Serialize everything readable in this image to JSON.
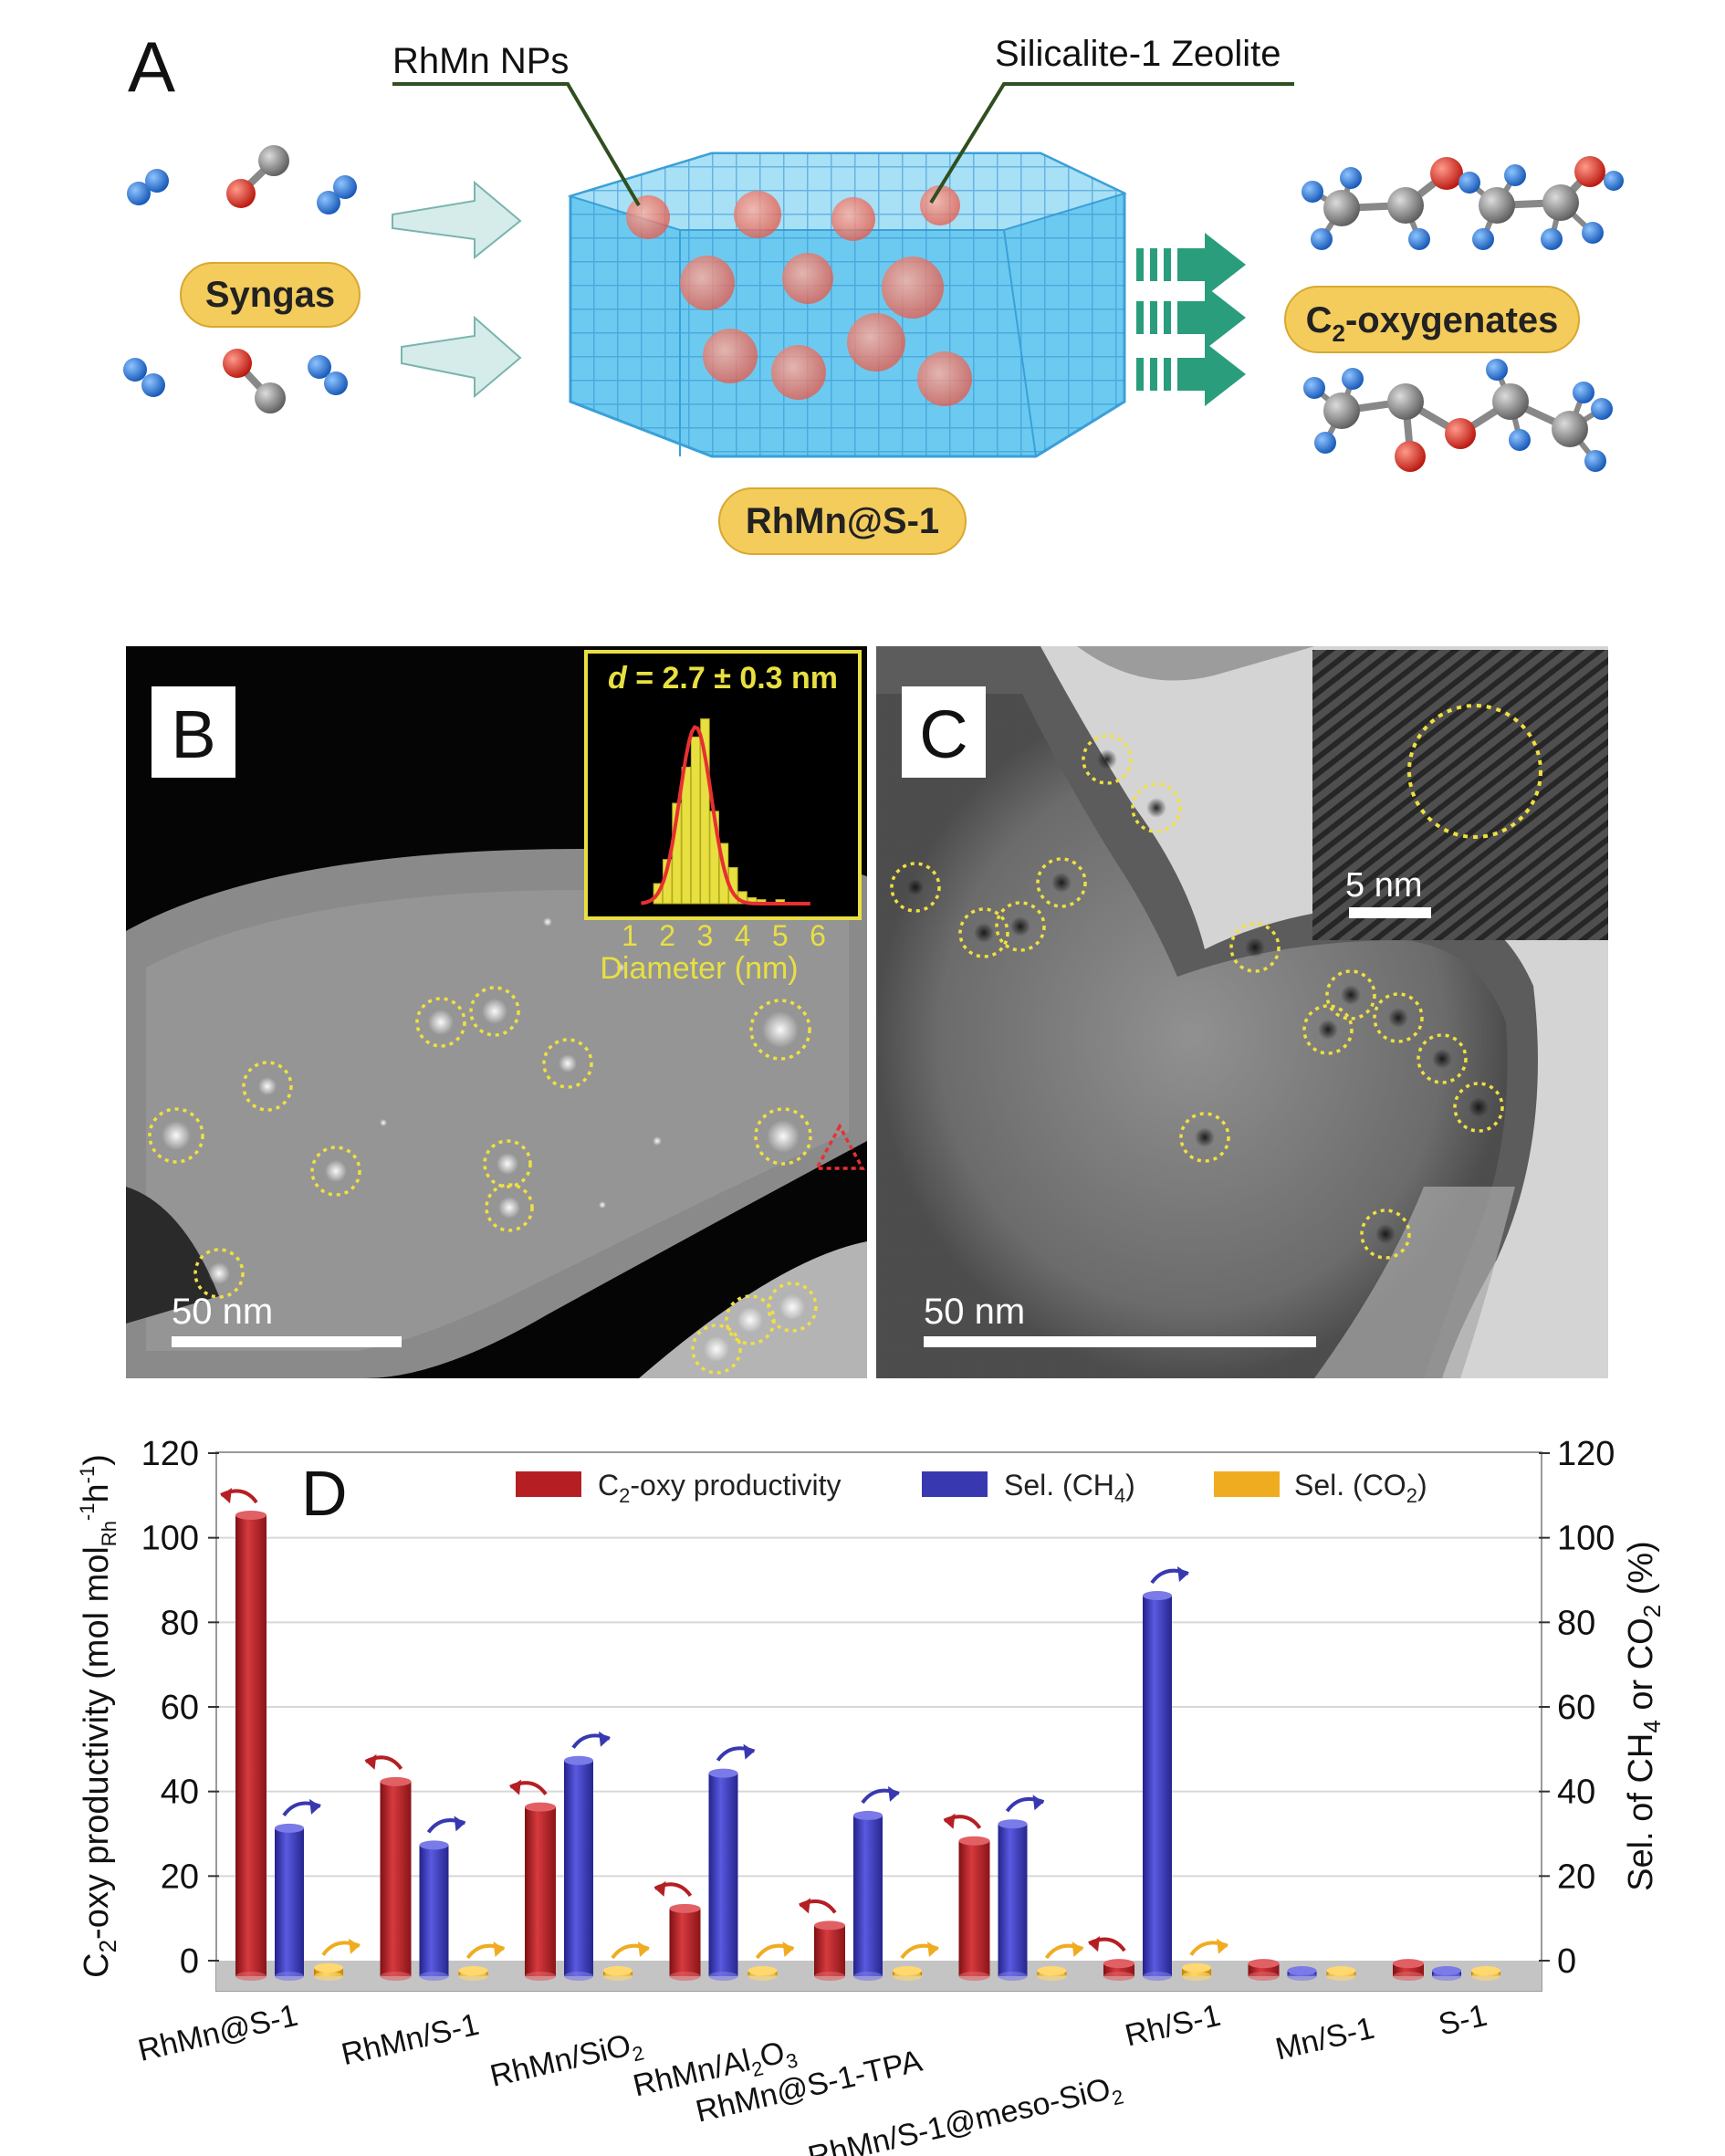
{
  "panel_a": {
    "letter": "A",
    "label_nps": "RhMn NPs",
    "label_zeolite": "Silicalite-1 Zeolite",
    "label_syngas": "Syngas",
    "label_catalyst": "RhMn@S-1",
    "label_products_prefix": "C",
    "label_products_sub": "2",
    "label_products_suffix": "-oxygenates",
    "colors": {
      "zeolite": "#5cc4ee",
      "particle": "#e85a4a",
      "pill": "#f4cc5c",
      "arrow_green": "#2a9d7c",
      "hydrogen": "#1f6fd0",
      "oxygen": "#e0261c",
      "carbon": "#8a8a8a"
    }
  },
  "panel_b": {
    "letter": "B",
    "scale_label": "50 nm",
    "hist_title_var": "d",
    "hist_title_rest": " = 2.7 ± 0.3 nm",
    "hist_xlabel": "Diameter (nm)",
    "hist_ticks": [
      "1",
      "2",
      "3",
      "4",
      "5",
      "6"
    ],
    "hist_bins": [
      {
        "center": 1.75,
        "value": 0.1
      },
      {
        "center": 2.0,
        "value": 0.22
      },
      {
        "center": 2.25,
        "value": 0.5
      },
      {
        "center": 2.5,
        "value": 0.68
      },
      {
        "center": 2.75,
        "value": 0.83
      },
      {
        "center": 3.0,
        "value": 0.92
      },
      {
        "center": 3.25,
        "value": 0.46
      },
      {
        "center": 3.5,
        "value": 0.3
      },
      {
        "center": 3.75,
        "value": 0.18
      },
      {
        "center": 4.0,
        "value": 0.06
      },
      {
        "center": 4.25,
        "value": 0.03
      },
      {
        "center": 4.5,
        "value": 0.02
      },
      {
        "center": 5.0,
        "value": 0.02
      }
    ],
    "colors": {
      "inset": "#e8e040",
      "fit": "#e83030",
      "circle": "#f0e040"
    }
  },
  "panel_c": {
    "letter": "C",
    "scale_label": "50 nm",
    "inset_scale_label": "5 nm"
  },
  "chart_data": {
    "type": "bar",
    "panel_letter": "D",
    "categories": [
      "RhMn@S-1",
      "RhMn/S-1",
      "RhMn/SiO",
      "RhMn/Al",
      "RhMn@S-1-TPA",
      "RhMn/S-1@meso-SiO",
      "Rh/S-1",
      "Mn/S-1",
      "S-1"
    ],
    "category_subscripts": [
      "",
      "",
      "2",
      "2",
      "",
      "2",
      "",
      "",
      ""
    ],
    "category_suffix_after_sub": [
      "",
      "",
      "",
      "O",
      "",
      "",
      "",
      "",
      ""
    ],
    "category_suffix_sub2": [
      "",
      "",
      "",
      "3",
      "",
      "",
      "",
      "",
      ""
    ],
    "series": [
      {
        "name": "C2-oxy productivity",
        "axis": "left",
        "values": [
          109,
          46,
          40,
          16,
          12,
          32,
          3,
          3,
          3
        ]
      },
      {
        "name": "Sel. (CH4)",
        "axis": "right",
        "values": [
          35,
          31,
          51,
          48,
          38,
          36,
          90,
          0,
          0
        ]
      },
      {
        "name": "Sel. (CO2)",
        "axis": "right",
        "values": [
          2,
          0,
          1,
          0,
          0,
          1,
          2,
          0,
          0
        ]
      }
    ],
    "legend": [
      {
        "pre": "C",
        "sub": "2",
        "post": "-oxy productivity"
      },
      {
        "pre": "Sel. (CH",
        "sub": "4",
        "post": ")"
      },
      {
        "pre": "Sel. (CO",
        "sub": "2",
        "post": ")"
      }
    ],
    "ylabel_left": {
      "pre": "C",
      "sub": "2",
      "mid": "-oxy productivity (mol mol",
      "sub2": "Rh",
      "sup2": "-1",
      "mid2": "h",
      "sup3": "-1",
      "post": ")"
    },
    "ylabel_right": {
      "pre": "Sel. of CH",
      "sub": "4",
      "mid": " or CO",
      "sub2": "2",
      "post": " (%)"
    },
    "ylim_left": [
      0,
      120
    ],
    "yticks_left": [
      "0",
      "20",
      "40",
      "60",
      "80",
      "100",
      "120"
    ],
    "ylim_right": [
      0,
      120
    ],
    "yticks_right": [
      "0",
      "20",
      "40",
      "60",
      "80",
      "100",
      "120"
    ],
    "grid": true,
    "legend_placement": "top",
    "colors": {
      "productivity": "#b51f24",
      "ch4": "#3838b0",
      "co2": "#f0ac20",
      "floor": "#c4c4c4"
    }
  }
}
